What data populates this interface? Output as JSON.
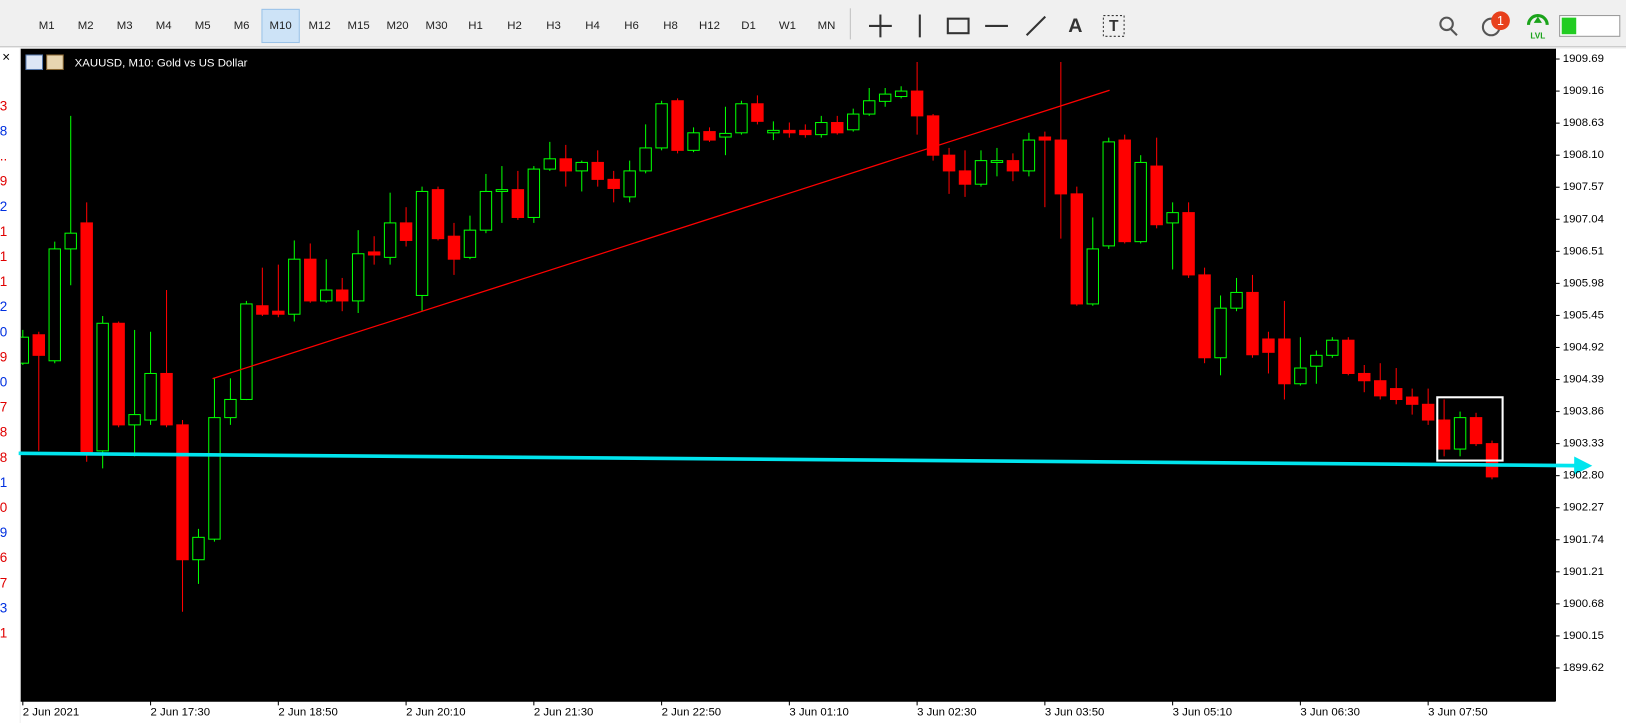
{
  "toolbar": {
    "timeframes": [
      {
        "label": "M1"
      },
      {
        "label": "M2"
      },
      {
        "label": "M3"
      },
      {
        "label": "M4"
      },
      {
        "label": "M5"
      },
      {
        "label": "M6"
      },
      {
        "label": "M10",
        "selected": true
      },
      {
        "label": "M12"
      },
      {
        "label": "M15"
      },
      {
        "label": "M20"
      },
      {
        "label": "M30"
      },
      {
        "label": "H1"
      },
      {
        "label": "H2"
      },
      {
        "label": "H3"
      },
      {
        "label": "H4"
      },
      {
        "label": "H6"
      },
      {
        "label": "H8"
      },
      {
        "label": "H12"
      },
      {
        "label": "D1"
      },
      {
        "label": "W1"
      },
      {
        "label": "MN"
      }
    ],
    "text_tool": "A",
    "label_tool": "T",
    "notification_count": "1",
    "level_badge": "LVL"
  },
  "side_panel": [
    {
      "text": "3",
      "color": "#e00000"
    },
    {
      "text": "8",
      "color": "#0030e0"
    },
    {
      "text": "..",
      "color": "#e00000"
    },
    {
      "text": "9",
      "color": "#e00000"
    },
    {
      "text": "2",
      "color": "#0030e0"
    },
    {
      "text": "1",
      "color": "#e00000"
    },
    {
      "text": "1",
      "color": "#e00000"
    },
    {
      "text": "1",
      "color": "#e00000"
    },
    {
      "text": "2",
      "color": "#0030e0"
    },
    {
      "text": "0",
      "color": "#0030e0"
    },
    {
      "text": "9",
      "color": "#e00000"
    },
    {
      "text": "0",
      "color": "#0030e0"
    },
    {
      "text": "7",
      "color": "#e00000"
    },
    {
      "text": "8",
      "color": "#e00000"
    },
    {
      "text": "8",
      "color": "#e00000"
    },
    {
      "text": "1",
      "color": "#0030e0"
    },
    {
      "text": "0",
      "color": "#e00000"
    },
    {
      "text": "9",
      "color": "#0030e0"
    },
    {
      "text": "6",
      "color": "#e00000"
    },
    {
      "text": "7",
      "color": "#e00000"
    },
    {
      "text": "3",
      "color": "#0030e0"
    },
    {
      "text": "1",
      "color": "#e00000"
    }
  ],
  "chart_data": {
    "type": "candlestick",
    "title": "XAUUSD, M10:  Gold vs US Dollar",
    "up_color": "#00ff00",
    "down_color": "#ff0000",
    "categories": [
      "2 Jun 2021",
      null,
      null,
      null,
      null,
      null,
      null,
      null,
      "2 Jun 17:30",
      null,
      null,
      null,
      null,
      null,
      null,
      null,
      "2 Jun 18:50",
      null,
      null,
      null,
      null,
      null,
      null,
      null,
      "2 Jun 20:10",
      null,
      null,
      null,
      null,
      null,
      null,
      null,
      "2 Jun 21:30",
      null,
      null,
      null,
      null,
      null,
      null,
      null,
      "2 Jun 22:50",
      null,
      null,
      null,
      null,
      null,
      null,
      null,
      "3 Jun 01:10",
      null,
      null,
      null,
      null,
      null,
      null,
      null,
      "3 Jun 02:30",
      null,
      null,
      null,
      null,
      null,
      null,
      null,
      "3 Jun 03:50",
      null,
      null,
      null,
      null,
      null,
      null,
      null,
      "3 Jun 05:10",
      null,
      null,
      null,
      null,
      null,
      null,
      null,
      "3 Jun 06:30",
      null,
      null,
      null,
      null,
      null,
      null,
      null,
      "3 Jun 07:50",
      null,
      null,
      null,
      null
    ],
    "open": [
      1904.66,
      1905.13,
      1904.7,
      1906.55,
      1906.98,
      1903.21,
      1905.32,
      1903.64,
      1903.72,
      1904.49,
      1903.64,
      1901.41,
      1901.75,
      1903.76,
      1904.06,
      1905.61,
      1905.52,
      1905.47,
      1906.38,
      1905.69,
      1905.87,
      1905.69,
      1906.5,
      1906.41,
      1906.98,
      1905.78,
      1907.53,
      1906.76,
      1906.41,
      1906.86,
      1907.5,
      1907.53,
      1907.07,
      1907.87,
      1908.04,
      1907.84,
      1907.98,
      1907.7,
      1907.41,
      1907.84,
      1908.22,
      1909.0,
      1908.18,
      1908.49,
      1908.4,
      1908.47,
      1908.95,
      1908.47,
      1908.51,
      1908.51,
      1908.44,
      1908.64,
      1908.52,
      1908.78,
      1908.99,
      1909.07,
      1909.16,
      1908.75,
      1908.1,
      1907.84,
      1907.62,
      1907.98,
      1908.01,
      1907.84,
      1908.4,
      1908.35,
      1907.46,
      1905.64,
      1906.6,
      1908.35,
      1906.67,
      1907.92,
      1906.98,
      1907.15,
      1906.12,
      1904.75,
      1905.57,
      1905.83,
      1905.06,
      1905.06,
      1904.32,
      1904.61,
      1904.79,
      1905.04,
      1904.49,
      1904.37,
      1904.24,
      1904.1,
      1903.98,
      1903.72,
      1903.24,
      1903.76,
      1903.33
    ],
    "high": [
      1905.21,
      1905.18,
      1906.67,
      1908.75,
      1907.32,
      1905.44,
      1905.35,
      1905.21,
      1905.18,
      1905.87,
      1903.72,
      1901.92,
      1904.41,
      1904.41,
      1905.69,
      1906.24,
      1906.29,
      1906.69,
      1906.64,
      1906.38,
      1906.07,
      1906.86,
      1906.76,
      1907.48,
      1907.24,
      1907.58,
      1907.58,
      1906.98,
      1907.1,
      1907.79,
      1907.92,
      1907.84,
      1907.92,
      1908.32,
      1908.27,
      1908.01,
      1908.18,
      1907.84,
      1908.01,
      1908.61,
      1909.0,
      1909.04,
      1908.56,
      1908.56,
      1908.9,
      1909.0,
      1909.09,
      1908.66,
      1908.64,
      1908.61,
      1908.75,
      1908.75,
      1908.87,
      1909.21,
      1909.21,
      1909.24,
      1909.64,
      1908.78,
      1908.22,
      1908.18,
      1908.18,
      1908.22,
      1908.13,
      1908.47,
      1908.49,
      1909.64,
      1907.58,
      1907.07,
      1908.39,
      1908.44,
      1908.1,
      1908.39,
      1907.32,
      1907.32,
      1906.24,
      1905.78,
      1906.07,
      1906.12,
      1905.18,
      1905.69,
      1905.09,
      1904.87,
      1905.09,
      1905.09,
      1904.63,
      1904.66,
      1904.58,
      1904.24,
      1904.24,
      1904.06,
      1903.86,
      1903.84,
      1903.38
    ],
    "low": [
      1904.63,
      1903.21,
      1904.66,
      1905.95,
      1903.03,
      1902.92,
      1903.6,
      1903.12,
      1903.64,
      1903.6,
      1900.55,
      1901.01,
      1901.71,
      1903.64,
      1904.05,
      1905.44,
      1905.42,
      1905.35,
      1905.66,
      1905.66,
      1905.52,
      1905.49,
      1906.29,
      1906.29,
      1906.59,
      1905.52,
      1906.69,
      1906.12,
      1906.38,
      1906.81,
      1906.98,
      1907.03,
      1906.98,
      1907.84,
      1907.58,
      1907.5,
      1907.58,
      1907.32,
      1907.32,
      1907.8,
      1908.18,
      1908.13,
      1908.15,
      1908.32,
      1908.1,
      1908.44,
      1908.61,
      1908.35,
      1908.39,
      1908.39,
      1908.39,
      1908.44,
      1908.49,
      1908.75,
      1908.9,
      1909.04,
      1908.44,
      1908.01,
      1907.46,
      1907.41,
      1907.58,
      1907.75,
      1907.67,
      1907.75,
      1907.24,
      1906.72,
      1905.61,
      1905.61,
      1906.55,
      1906.64,
      1906.64,
      1906.89,
      1906.21,
      1906.07,
      1904.66,
      1904.46,
      1905.52,
      1904.75,
      1904.49,
      1904.06,
      1904.29,
      1904.32,
      1904.75,
      1904.46,
      1904.18,
      1904.06,
      1903.98,
      1903.81,
      1903.64,
      1903.12,
      1903.12,
      1903.29,
      1902.74
    ],
    "close": [
      1905.09,
      1904.79,
      1906.55,
      1906.81,
      1903.17,
      1905.32,
      1903.64,
      1903.81,
      1904.49,
      1903.64,
      1901.41,
      1901.78,
      1903.76,
      1904.06,
      1905.64,
      1905.47,
      1905.47,
      1906.38,
      1905.69,
      1905.87,
      1905.69,
      1906.47,
      1906.45,
      1906.98,
      1906.69,
      1907.5,
      1906.72,
      1906.38,
      1906.86,
      1907.5,
      1907.53,
      1907.07,
      1907.87,
      1908.04,
      1907.84,
      1907.98,
      1907.7,
      1907.55,
      1907.84,
      1908.22,
      1908.95,
      1908.18,
      1908.47,
      1908.35,
      1908.46,
      1908.95,
      1908.66,
      1908.51,
      1908.47,
      1908.44,
      1908.64,
      1908.47,
      1908.78,
      1909.0,
      1909.11,
      1909.16,
      1908.75,
      1908.1,
      1907.84,
      1907.62,
      1908.01,
      1908.01,
      1907.84,
      1908.35,
      1908.35,
      1907.46,
      1905.64,
      1906.55,
      1908.32,
      1906.67,
      1907.98,
      1906.95,
      1907.15,
      1906.12,
      1904.75,
      1905.57,
      1905.83,
      1904.8,
      1904.84,
      1904.32,
      1904.58,
      1904.79,
      1905.04,
      1904.49,
      1904.37,
      1904.12,
      1904.06,
      1903.98,
      1903.72,
      1903.24,
      1903.76,
      1903.33,
      1902.78
    ],
    "ylim": [
      1899.07,
      1909.86
    ],
    "yticks": [
      1909.69,
      1909.16,
      1908.63,
      {
        "value": 1908.1,
        "label": "1908.10"
      },
      1907.57,
      1907.04,
      1906.51,
      1905.98,
      1905.45,
      1904.92,
      1904.39,
      1903.86,
      1903.33,
      {
        "value": 1902.8,
        "label": "1902.80"
      },
      1902.27,
      1901.74,
      1901.21,
      1900.68,
      1900.15,
      1899.62
    ]
  }
}
